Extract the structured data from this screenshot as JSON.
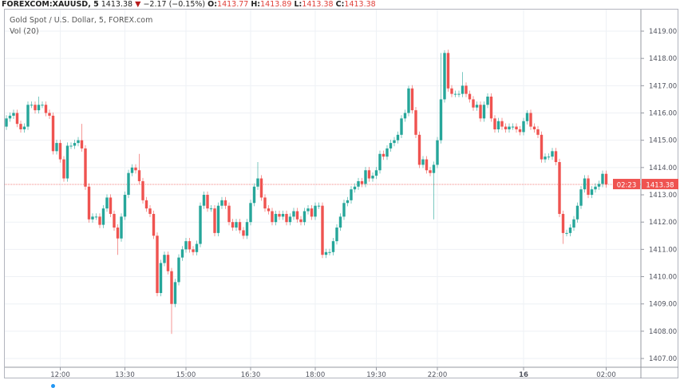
{
  "header": {
    "symbol": "FOREXCOM:XAUUSD, 5",
    "last": "1413.38",
    "direction": "down",
    "change": "−2.17 (−0.15%)",
    "o_label": "O:",
    "o": "1413.77",
    "h_label": "H:",
    "h": "1413.89",
    "l_label": "L:",
    "l": "1413.38",
    "c_label": "C:",
    "c": "1413.38"
  },
  "legend": {
    "title": "Gold Spot / U.S. Dollar, 5, FOREX.com",
    "volume": "Vol (20)"
  },
  "colors": {
    "up": "#26a69a",
    "down": "#ef5350",
    "price_line": "#ef5350",
    "grid": "#eef1f5"
  },
  "chart_data": {
    "type": "candlestick",
    "interval": "5",
    "ylim": [
      1406.7,
      1419.5
    ],
    "y_ticks": [
      "1407.00",
      "1408.00",
      "1409.00",
      "1410.00",
      "1411.00",
      "1412.00",
      "1413.00",
      "1414.00",
      "1415.00",
      "1416.00",
      "1417.00",
      "1418.00",
      "1419.00"
    ],
    "x_ticks": [
      {
        "label": "12:00",
        "bar": 15
      },
      {
        "label": "13:30",
        "bar": 33
      },
      {
        "label": "15:00",
        "bar": 50
      },
      {
        "label": "16:30",
        "bar": 68
      },
      {
        "label": "18:00",
        "bar": 86
      },
      {
        "label": "19:30",
        "bar": 103
      },
      {
        "label": "22:00",
        "bar": 120
      },
      {
        "label": "16",
        "bar": 144,
        "bold": true
      },
      {
        "label": "02:00",
        "bar": 167
      }
    ],
    "first_open": 1415.5,
    "close": [
      1415.8,
      1415.9,
      1416.0,
      1415.6,
      1415.4,
      1415.5,
      1416.3,
      1416.3,
      1416.1,
      1416.3,
      1416.3,
      1416.0,
      1415.9,
      1414.6,
      1414.9,
      1414.3,
      1413.6,
      1414.8,
      1414.8,
      1414.9,
      1415.0,
      1414.7,
      1413.3,
      1412.1,
      1412.2,
      1412.2,
      1411.9,
      1412.5,
      1412.9,
      1412.3,
      1411.8,
      1411.4,
      1412.2,
      1413.0,
      1413.8,
      1414.0,
      1413.9,
      1413.5,
      1412.8,
      1412.5,
      1412.3,
      1411.5,
      1409.4,
      1410.5,
      1410.8,
      1410.2,
      1409.0,
      1409.8,
      1410.7,
      1411.0,
      1411.3,
      1411.0,
      1410.9,
      1411.2,
      1412.6,
      1413.0,
      1412.5,
      1412.5,
      1411.6,
      1412.6,
      1412.8,
      1412.6,
      1412.0,
      1411.8,
      1412.0,
      1411.7,
      1411.5,
      1412.0,
      1412.7,
      1413.3,
      1413.6,
      1412.9,
      1412.5,
      1412.4,
      1412.0,
      1412.3,
      1412.2,
      1412.3,
      1412.0,
      1412.2,
      1412.4,
      1412.1,
      1412.0,
      1412.4,
      1412.5,
      1412.2,
      1412.6,
      1412.6,
      1410.8,
      1410.9,
      1410.9,
      1411.3,
      1411.8,
      1412.2,
      1412.7,
      1412.8,
      1413.2,
      1413.3,
      1413.5,
      1413.4,
      1413.9,
      1413.6,
      1413.7,
      1413.9,
      1414.5,
      1414.4,
      1414.7,
      1414.9,
      1415.0,
      1415.2,
      1415.8,
      1416.0,
      1416.9,
      1416.1,
      1415.2,
      1414.1,
      1414.3,
      1413.9,
      1413.8,
      1414.1,
      1415.0,
      1416.5,
      1418.2,
      1416.9,
      1416.7,
      1416.7,
      1416.7,
      1417.0,
      1416.7,
      1416.5,
      1416.2,
      1416.3,
      1415.8,
      1416.3,
      1416.6,
      1415.8,
      1415.4,
      1415.7,
      1415.5,
      1415.4,
      1415.5,
      1415.5,
      1415.4,
      1415.3,
      1415.7,
      1416.0,
      1415.5,
      1415.4,
      1415.2,
      1414.3,
      1414.4,
      1414.4,
      1414.6,
      1414.2,
      1412.3,
      1411.6,
      1411.6,
      1411.8,
      1412.1,
      1412.6,
      1413.2,
      1413.6,
      1413.0,
      1413.2,
      1413.3,
      1413.4,
      1413.77,
      1413.38
    ],
    "wick_extremes": [
      {
        "bar": 9,
        "high": 1416.6
      },
      {
        "bar": 21,
        "high": 1415.6
      },
      {
        "bar": 31,
        "low": 1410.8
      },
      {
        "bar": 37,
        "high": 1414.5
      },
      {
        "bar": 46,
        "low": 1407.9
      },
      {
        "bar": 70,
        "high": 1414.2
      },
      {
        "bar": 112,
        "high": 1417.0
      },
      {
        "bar": 119,
        "low": 1412.1
      },
      {
        "bar": 121,
        "high": 1418.2
      },
      {
        "bar": 122,
        "high": 1418.3
      },
      {
        "bar": 127,
        "high": 1417.5
      },
      {
        "bar": 145,
        "high": 1416.1
      },
      {
        "bar": 155,
        "low": 1411.2
      },
      {
        "bar": 167,
        "high": 1413.89
      }
    ],
    "last_price": "1413.38",
    "countdown": "02:23"
  }
}
